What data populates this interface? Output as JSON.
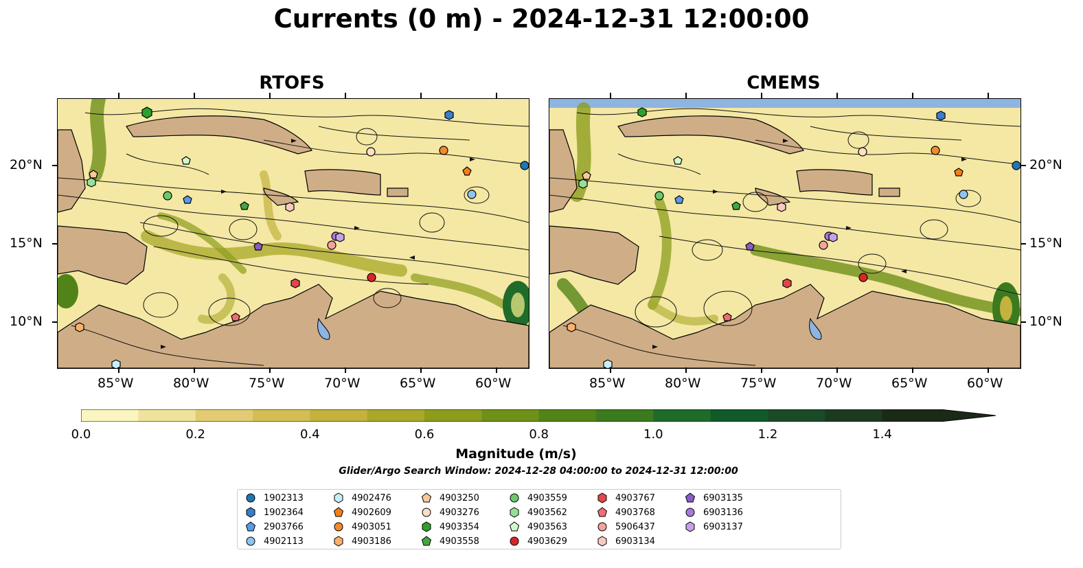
{
  "title": "Currents (0 m) - 2024-12-31 12:00:00",
  "panels": [
    {
      "title": "RTOFS"
    },
    {
      "title": "CMEMS"
    }
  ],
  "lat_labels": [
    "20°N",
    "15°N",
    "10°N"
  ],
  "lon_labels": [
    "85°W",
    "80°W",
    "75°W",
    "70°W",
    "65°W",
    "60°W"
  ],
  "colorbar": {
    "label": "Magnitude (m/s)",
    "ticks": [
      "0.0",
      "0.2",
      "0.4",
      "0.6",
      "0.8",
      "1.0",
      "1.2",
      "1.4"
    ],
    "max": 1.5,
    "colors": [
      "#fbf5c0",
      "#efe29a",
      "#e1cc74",
      "#d4bd55",
      "#c3b23e",
      "#a9a82a",
      "#8c9d1d",
      "#6f9019",
      "#528318",
      "#3b7a1e",
      "#1f6b2a",
      "#12592b",
      "#1a4a26",
      "#1c3a20",
      "#1b2a17"
    ]
  },
  "search_window": "Glider/Argo Search Window: 2024-12-28 04:00:00 to 2024-12-31 12:00:00",
  "legend": [
    {
      "id": "1902313",
      "marker": "circle",
      "color": "#1f77b4"
    },
    {
      "id": "1902364",
      "marker": "hexagon",
      "color": "#3a7dc9"
    },
    {
      "id": "2903766",
      "marker": "pentagon",
      "color": "#5b9be6"
    },
    {
      "id": "4902113",
      "marker": "circle",
      "color": "#8ec5f2"
    },
    {
      "id": "4902476",
      "marker": "hexagon",
      "color": "#c8eefb"
    },
    {
      "id": "4902609",
      "marker": "pentagon",
      "color": "#f57f17"
    },
    {
      "id": "4903051",
      "marker": "circle",
      "color": "#f28c28"
    },
    {
      "id": "4903186",
      "marker": "hexagon",
      "color": "#fbb06a"
    },
    {
      "id": "4903250",
      "marker": "pentagon",
      "color": "#fcc89a"
    },
    {
      "id": "4903276",
      "marker": "circle",
      "color": "#fde0c4"
    },
    {
      "id": "4903354",
      "marker": "hexagon",
      "color": "#2ca02c"
    },
    {
      "id": "4903558",
      "marker": "pentagon",
      "color": "#40a840"
    },
    {
      "id": "4903559",
      "marker": "circle",
      "color": "#6cc86c"
    },
    {
      "id": "4903562",
      "marker": "hexagon",
      "color": "#98e098"
    },
    {
      "id": "4903563",
      "marker": "pentagon",
      "color": "#d4f7cc"
    },
    {
      "id": "4903629",
      "marker": "circle",
      "color": "#d62728"
    },
    {
      "id": "4903767",
      "marker": "hexagon",
      "color": "#e0474a"
    },
    {
      "id": "4903768",
      "marker": "pentagon",
      "color": "#ec7072"
    },
    {
      "id": "5906437",
      "marker": "circle",
      "color": "#f4a29c"
    },
    {
      "id": "6903134",
      "marker": "hexagon",
      "color": "#f9c9c0"
    },
    {
      "id": "6903135",
      "marker": "pentagon",
      "color": "#8a5cc4"
    },
    {
      "id": "6903136",
      "marker": "circle",
      "color": "#a87ad8"
    },
    {
      "id": "6903137",
      "marker": "hexagon",
      "color": "#c4a2ea"
    }
  ]
}
